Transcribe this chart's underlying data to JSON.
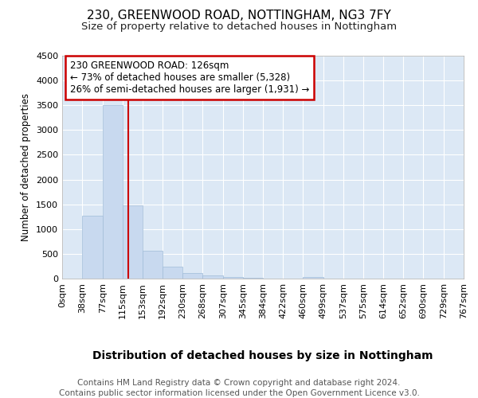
{
  "title1": "230, GREENWOOD ROAD, NOTTINGHAM, NG3 7FY",
  "title2": "Size of property relative to detached houses in Nottingham",
  "xlabel": "Distribution of detached houses by size in Nottingham",
  "ylabel": "Number of detached properties",
  "bar_edges": [
    0,
    38,
    77,
    115,
    153,
    192,
    230,
    268,
    307,
    345,
    384,
    422,
    460,
    499,
    537,
    575,
    614,
    652,
    690,
    729,
    767
  ],
  "bar_heights": [
    5,
    1270,
    3500,
    1480,
    570,
    240,
    110,
    65,
    25,
    10,
    5,
    2,
    30,
    2,
    2,
    2,
    2,
    2,
    2,
    2
  ],
  "bar_color": "#c8d9ef",
  "bar_edgecolor": "#a0bcd8",
  "ylim": [
    0,
    4500
  ],
  "yticks": [
    0,
    500,
    1000,
    1500,
    2000,
    2500,
    3000,
    3500,
    4000,
    4500
  ],
  "property_size": 126,
  "vline_color": "#cc0000",
  "annotation_line1": "230 GREENWOOD ROAD: 126sqm",
  "annotation_line2": "← 73% of detached houses are smaller (5,328)",
  "annotation_line3": "26% of semi-detached houses are larger (1,931) →",
  "annotation_box_color": "#cc0000",
  "annotation_bg": "#ffffff",
  "footer1": "Contains HM Land Registry data © Crown copyright and database right 2024.",
  "footer2": "Contains public sector information licensed under the Open Government Licence v3.0.",
  "fig_bg_color": "#ffffff",
  "plot_bg_color": "#dce8f5",
  "grid_color": "#ffffff",
  "title1_fontsize": 11,
  "title2_fontsize": 9.5,
  "xlabel_fontsize": 10,
  "ylabel_fontsize": 8.5,
  "tick_fontsize": 8,
  "annotation_fontsize": 8.5,
  "footer_fontsize": 7.5
}
